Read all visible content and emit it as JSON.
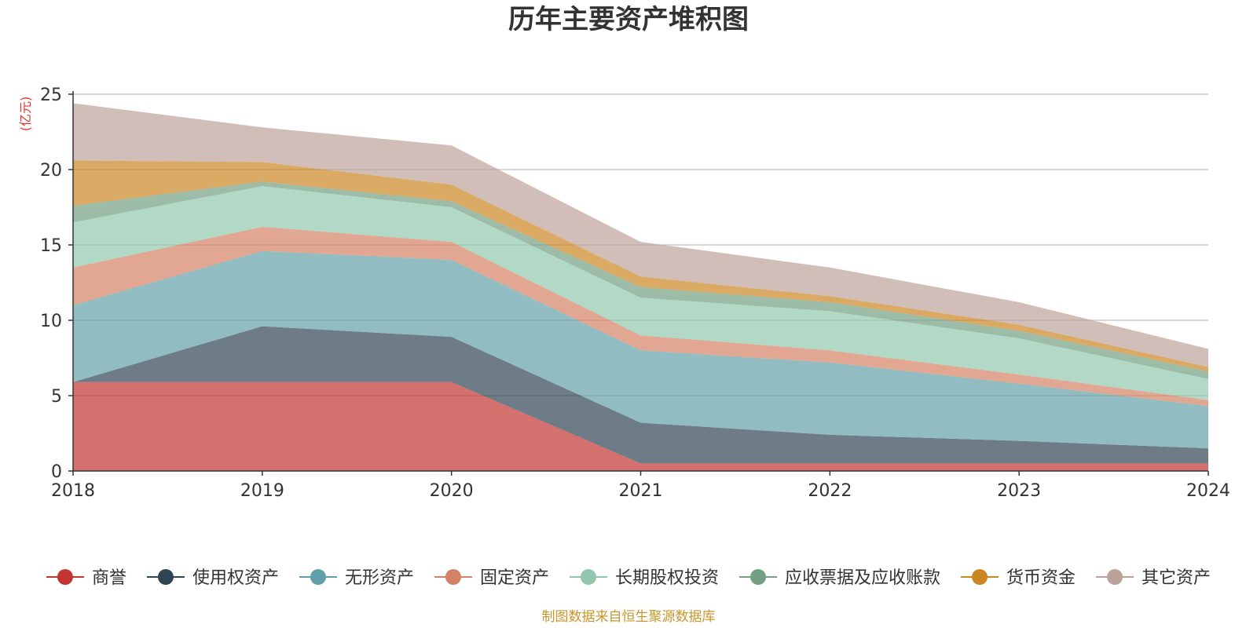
{
  "chart_data": {
    "type": "area",
    "stacked": true,
    "title": "历年主要资产堆积图",
    "unit_label": "(亿元)",
    "source_note": "制图数据来自恒生聚源数据库",
    "x": [
      "2018",
      "2019",
      "2020",
      "2021",
      "2022",
      "2023",
      "2024"
    ],
    "ylim": [
      0,
      25
    ],
    "yticks": [
      "0",
      "5",
      "10",
      "15",
      "20",
      "25"
    ],
    "grid": true,
    "legend_position": "bottom",
    "series": [
      {
        "name": "商誉",
        "color": "#c23531",
        "values": [
          5.9,
          5.9,
          5.9,
          0.5,
          0.5,
          0.5,
          0.5
        ]
      },
      {
        "name": "使用权资产",
        "color": "#2f4554",
        "values": [
          0.0,
          3.7,
          3.0,
          2.7,
          1.9,
          1.5,
          1.0
        ]
      },
      {
        "name": "无形资产",
        "color": "#61a0a8",
        "values": [
          5.1,
          5.0,
          5.1,
          4.8,
          4.8,
          3.8,
          2.8
        ]
      },
      {
        "name": "固定资产",
        "color": "#d48265",
        "values": [
          2.5,
          1.6,
          1.2,
          1.0,
          0.8,
          0.6,
          0.4
        ]
      },
      {
        "name": "长期股权投资",
        "color": "#91c7ae",
        "values": [
          3.0,
          2.7,
          2.3,
          2.5,
          2.6,
          2.4,
          1.4
        ]
      },
      {
        "name": "应收票据及应收账款",
        "color": "#749f83",
        "values": [
          1.1,
          0.3,
          0.4,
          0.7,
          0.6,
          0.5,
          0.5
        ]
      },
      {
        "name": "货币资金",
        "color": "#ca8622",
        "values": [
          3.0,
          1.3,
          1.1,
          0.7,
          0.4,
          0.4,
          0.3
        ]
      },
      {
        "name": "其它资产",
        "color": "#bda29a",
        "values": [
          3.8,
          2.3,
          2.6,
          2.3,
          1.9,
          1.5,
          1.2
        ]
      }
    ]
  }
}
